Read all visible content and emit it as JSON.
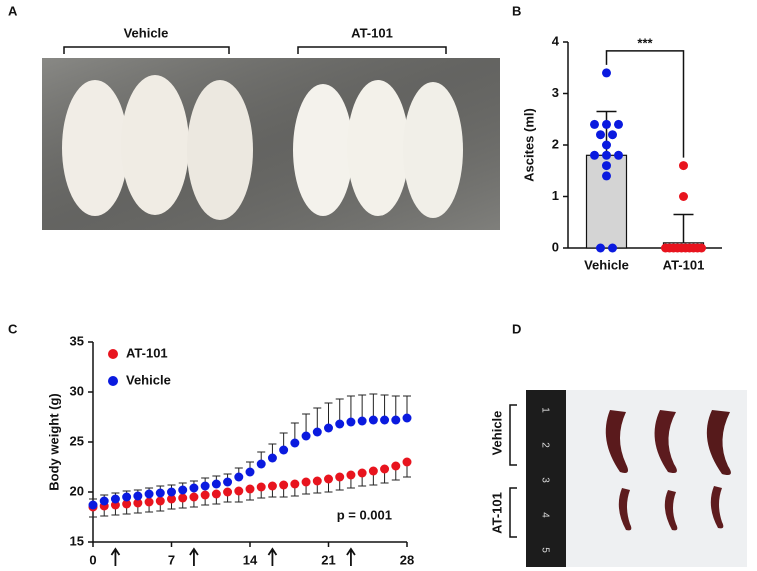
{
  "panels": {
    "A": {
      "label": "A",
      "groups": [
        "Vehicle",
        "AT-101"
      ]
    },
    "B": {
      "label": "B"
    },
    "C": {
      "label": "C"
    },
    "D": {
      "label": "D",
      "groups": [
        "Vehicle",
        "AT-101"
      ],
      "ruler": [
        1,
        2,
        3,
        4,
        5
      ]
    }
  },
  "chart_data": [
    {
      "type": "bar",
      "ylabel": "Ascites (ml)",
      "categories": [
        "Vehicle",
        "AT-101"
      ],
      "values": [
        1.8,
        0.1
      ],
      "errors": [
        0.85,
        0.55
      ],
      "bar_colors": [
        "#d4d4d4",
        "#ffffff"
      ],
      "points": [
        [
          3.4,
          2.4,
          2.4,
          2.4,
          2.2,
          2.2,
          2.0,
          1.8,
          1.8,
          1.8,
          1.6,
          1.4,
          0,
          0
        ],
        [
          1.6,
          1.0,
          0,
          0,
          0,
          0,
          0,
          0,
          0,
          0,
          0,
          0
        ]
      ],
      "point_colors": [
        "#0a1adf",
        "#e8141e"
      ],
      "annotation": "***",
      "ylim": [
        0,
        4
      ],
      "yticks": [
        0,
        1,
        2,
        3,
        4
      ]
    },
    {
      "type": "line",
      "ylabel": "Body weight (g)",
      "x": [
        0,
        1,
        2,
        3,
        4,
        5,
        6,
        7,
        8,
        9,
        10,
        11,
        12,
        13,
        14,
        15,
        16,
        17,
        18,
        19,
        20,
        21,
        22,
        23,
        24,
        25,
        26,
        27,
        28
      ],
      "series": [
        {
          "name": "AT-101",
          "color": "#e8141e",
          "error_side": "down",
          "values": [
            18.5,
            18.6,
            18.7,
            18.8,
            18.9,
            19.0,
            19.1,
            19.3,
            19.4,
            19.5,
            19.7,
            19.8,
            20.0,
            20.1,
            20.3,
            20.5,
            20.6,
            20.7,
            20.8,
            21.0,
            21.1,
            21.3,
            21.5,
            21.7,
            21.9,
            22.1,
            22.3,
            22.6,
            23.0
          ],
          "errors": [
            1.0,
            1.0,
            1.0,
            1.0,
            1.0,
            1.0,
            1.0,
            1.0,
            1.0,
            1.0,
            1.0,
            1.0,
            1.0,
            1.1,
            1.1,
            1.1,
            1.1,
            1.2,
            1.2,
            1.2,
            1.2,
            1.3,
            1.3,
            1.3,
            1.3,
            1.4,
            1.4,
            1.4,
            1.5
          ]
        },
        {
          "name": "Vehicle",
          "color": "#0a1adf",
          "error_side": "up",
          "values": [
            18.7,
            19.1,
            19.3,
            19.5,
            19.6,
            19.8,
            19.9,
            20.0,
            20.2,
            20.4,
            20.6,
            20.8,
            21.0,
            21.5,
            22.0,
            22.8,
            23.4,
            24.2,
            24.9,
            25.6,
            26.0,
            26.4,
            26.8,
            27.0,
            27.1,
            27.2,
            27.2,
            27.2,
            27.4
          ],
          "errors": [
            0.6,
            0.6,
            0.6,
            0.6,
            0.6,
            0.6,
            0.7,
            0.7,
            0.7,
            0.7,
            0.8,
            0.8,
            0.8,
            0.9,
            1.0,
            1.2,
            1.4,
            1.7,
            2.0,
            2.2,
            2.4,
            2.5,
            2.5,
            2.6,
            2.6,
            2.6,
            2.5,
            2.4,
            2.2
          ]
        }
      ],
      "legend": "upper left",
      "annotation": "p = 0.001",
      "arrows_x": [
        2,
        9,
        16,
        23
      ],
      "xlim": [
        0,
        28
      ],
      "xticks": [
        0,
        7,
        14,
        21,
        28
      ],
      "ylim": [
        15,
        35
      ],
      "yticks": [
        15,
        20,
        25,
        30,
        35
      ]
    }
  ]
}
